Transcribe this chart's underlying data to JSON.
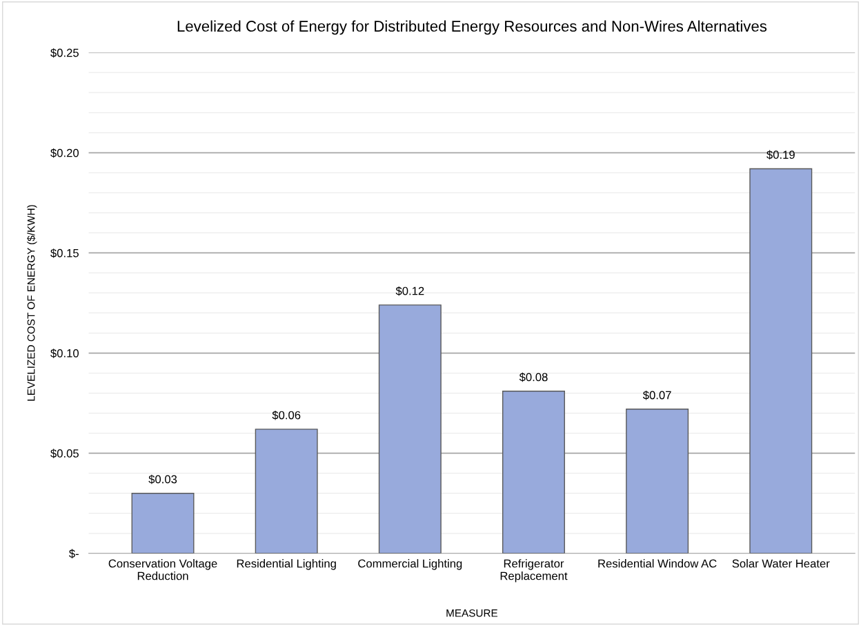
{
  "chart_data": {
    "type": "bar",
    "title": "Levelized Cost of Energy for Distributed Energy Resources and Non-Wires Alternatives",
    "xlabel": "MEASURE",
    "ylabel": "LEVELIZED COST OF ENERGY ($/KWH)",
    "categories": [
      "Conservation Voltage\nReduction",
      "Residential Lighting",
      "Commercial Lighting",
      "Refrigerator\nReplacement",
      "Residential Window AC",
      "Solar Water Heater"
    ],
    "values": [
      0.03,
      0.062,
      0.124,
      0.081,
      0.072,
      0.192
    ],
    "value_labels": [
      "$0.03",
      "$0.06",
      "$0.12",
      "$0.08",
      "$0.07",
      "$0.19"
    ],
    "color": "#98aadc",
    "ylim": [
      0,
      0.25
    ],
    "yticks": [
      {
        "value": 0,
        "label": "$-"
      },
      {
        "value": 0.01,
        "label": null
      },
      {
        "value": 0.02,
        "label": null
      },
      {
        "value": 0.03,
        "label": null
      },
      {
        "value": 0.04,
        "label": null
      },
      {
        "value": 0.05,
        "label": "$0.05"
      },
      {
        "value": 0.06,
        "label": null
      },
      {
        "value": 0.07,
        "label": null
      },
      {
        "value": 0.08,
        "label": null
      },
      {
        "value": 0.09,
        "label": null
      },
      {
        "value": 0.1,
        "label": "$0.10"
      },
      {
        "value": 0.11,
        "label": null
      },
      {
        "value": 0.12,
        "label": null
      },
      {
        "value": 0.13,
        "label": null
      },
      {
        "value": 0.14,
        "label": null
      },
      {
        "value": 0.15,
        "label": "$0.15"
      },
      {
        "value": 0.16,
        "label": null
      },
      {
        "value": 0.17,
        "label": null
      },
      {
        "value": 0.18,
        "label": null
      },
      {
        "value": 0.19,
        "label": null
      },
      {
        "value": 0.2,
        "label": "$0.20"
      },
      {
        "value": 0.21,
        "label": null
      },
      {
        "value": 0.22,
        "label": null
      },
      {
        "value": 0.23,
        "label": null
      },
      {
        "value": 0.24,
        "label": null
      },
      {
        "value": 0.25,
        "label": "$0.25"
      }
    ],
    "grid": "y",
    "legend": false
  }
}
